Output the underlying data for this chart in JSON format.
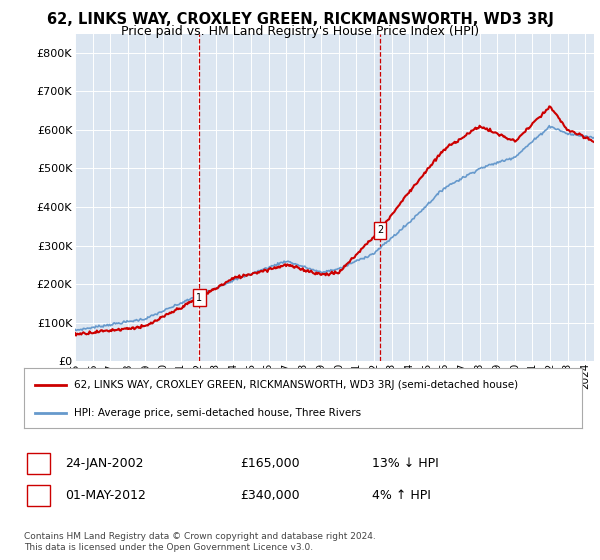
{
  "title": "62, LINKS WAY, CROXLEY GREEN, RICKMANSWORTH, WD3 3RJ",
  "subtitle": "Price paid vs. HM Land Registry's House Price Index (HPI)",
  "background_color": "#ffffff",
  "plot_bg_color": "#dce6f1",
  "grid_color": "#ffffff",
  "hpi_color": "#6699cc",
  "price_color": "#cc0000",
  "ylim": [
    0,
    850000
  ],
  "xlim": [
    1995,
    2024.5
  ],
  "yticks": [
    0,
    100000,
    200000,
    300000,
    400000,
    500000,
    600000,
    700000,
    800000
  ],
  "ytick_labels": [
    "£0",
    "£100K",
    "£200K",
    "£300K",
    "£400K",
    "£500K",
    "£600K",
    "£700K",
    "£800K"
  ],
  "sale1_date": 2002.07,
  "sale1_price": 165000,
  "sale1_label": "1",
  "sale2_date": 2012.33,
  "sale2_price": 340000,
  "sale2_label": "2",
  "legend_line1": "62, LINKS WAY, CROXLEY GREEN, RICKMANSWORTH, WD3 3RJ (semi-detached house)",
  "legend_line2": "HPI: Average price, semi-detached house, Three Rivers",
  "annotation1_num": "1",
  "annotation1_date": "24-JAN-2002",
  "annotation1_price": "£165,000",
  "annotation1_pct": "13% ↓ HPI",
  "annotation2_num": "2",
  "annotation2_date": "01-MAY-2012",
  "annotation2_price": "£340,000",
  "annotation2_pct": "4% ↑ HPI",
  "footer": "Contains HM Land Registry data © Crown copyright and database right 2024.\nThis data is licensed under the Open Government Licence v3.0."
}
